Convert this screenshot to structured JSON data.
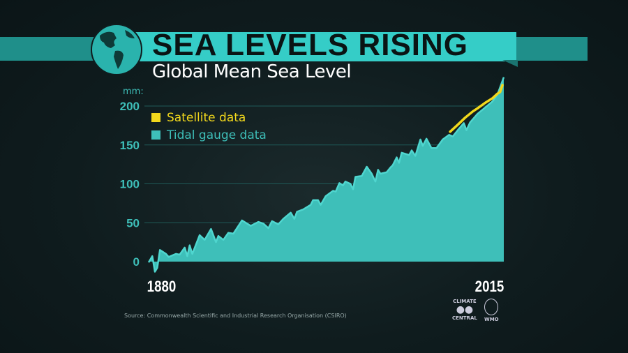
{
  "header": {
    "title": "SEA LEVELS RISING",
    "subtitle": "Global Mean Sea Level",
    "globe_icon": "globe-icon"
  },
  "source": "Source: Commonwealth Scientific and Industrial Research Organisation (CSIRO)",
  "logos": {
    "climate_central_top": "CLIMATE",
    "climate_central_bottom": "CENTRAL",
    "wmo": "WMO"
  },
  "colors": {
    "tidal": "#3ebfb9",
    "satellite": "#f2d81c",
    "background": "#0f1c1e",
    "banner": "#35cdc7"
  },
  "chart_data": {
    "type": "area",
    "ylabel": "mm:",
    "ylim": [
      -15,
      240
    ],
    "yticks": [
      0,
      50,
      100,
      150,
      200
    ],
    "xlim": [
      1880,
      2015
    ],
    "xtick_labels": [
      "1880",
      "2015"
    ],
    "grid": true,
    "legend_position": "top-left",
    "series": [
      {
        "name": "Satellite data",
        "type": "line",
        "points": [
          [
            1994.6,
            167
          ],
          [
            1997.5,
            176
          ],
          [
            2000.3,
            185
          ],
          [
            2003.2,
            193
          ],
          [
            2005,
            197
          ],
          [
            2007.9,
            204
          ],
          [
            2010.7,
            210
          ],
          [
            2012.6,
            216
          ],
          [
            2013.6,
            218
          ],
          [
            2014.5,
            227
          ]
        ]
      },
      {
        "name": "Tidal gauge data",
        "type": "area",
        "points": [
          [
            1880,
            -1
          ],
          [
            1881.4,
            7
          ],
          [
            1882.4,
            -13
          ],
          [
            1883.3,
            -8
          ],
          [
            1884.3,
            15
          ],
          [
            1886.6,
            10
          ],
          [
            1887.6,
            6
          ],
          [
            1890.4,
            10
          ],
          [
            1891.8,
            9
          ],
          [
            1893.7,
            18
          ],
          [
            1894.7,
            7
          ],
          [
            1895.6,
            21
          ],
          [
            1896.6,
            10
          ],
          [
            1899.4,
            34
          ],
          [
            1901.3,
            28
          ],
          [
            1903.7,
            42
          ],
          [
            1905.6,
            25
          ],
          [
            1906.5,
            33
          ],
          [
            1908.4,
            28
          ],
          [
            1910.3,
            37
          ],
          [
            1912.2,
            36
          ],
          [
            1915.5,
            53
          ],
          [
            1918.8,
            46
          ],
          [
            1921.7,
            51
          ],
          [
            1923.6,
            49
          ],
          [
            1925.5,
            43
          ],
          [
            1926.9,
            52
          ],
          [
            1929.3,
            48
          ],
          [
            1931.2,
            55
          ],
          [
            1934,
            63
          ],
          [
            1935.4,
            55
          ],
          [
            1936.4,
            64
          ],
          [
            1938.7,
            67
          ],
          [
            1941.6,
            73
          ],
          [
            1942.5,
            79
          ],
          [
            1944.4,
            79
          ],
          [
            1945.4,
            73
          ],
          [
            1947.3,
            84
          ],
          [
            1950.1,
            91
          ],
          [
            1951.1,
            90
          ],
          [
            1952.5,
            101
          ],
          [
            1953.9,
            98
          ],
          [
            1954.8,
            103
          ],
          [
            1956.7,
            100
          ],
          [
            1957.7,
            93
          ],
          [
            1958.6,
            109
          ],
          [
            1961,
            110
          ],
          [
            1962.9,
            122
          ],
          [
            1964.8,
            113
          ],
          [
            1966.2,
            103
          ],
          [
            1967.2,
            118
          ],
          [
            1968.1,
            113
          ],
          [
            1970.5,
            115
          ],
          [
            1971.9,
            121
          ],
          [
            1972.8,
            124
          ],
          [
            1974.3,
            134
          ],
          [
            1975.2,
            127
          ],
          [
            1976.2,
            140
          ],
          [
            1979,
            137
          ],
          [
            1980,
            143
          ],
          [
            1981.4,
            136
          ],
          [
            1983.3,
            157
          ],
          [
            1984.2,
            149
          ],
          [
            1985.6,
            158
          ],
          [
            1987.5,
            146
          ],
          [
            1989.4,
            146
          ],
          [
            1991.8,
            157
          ],
          [
            1994.2,
            163
          ],
          [
            1995.6,
            161
          ],
          [
            1997.5,
            169
          ],
          [
            1999.8,
            178
          ],
          [
            2000.8,
            169
          ],
          [
            2002.2,
            179
          ],
          [
            2005,
            190
          ],
          [
            2007.9,
            198
          ],
          [
            2010.7,
            206
          ],
          [
            2012.6,
            215
          ],
          [
            2015,
            237
          ]
        ]
      }
    ]
  }
}
